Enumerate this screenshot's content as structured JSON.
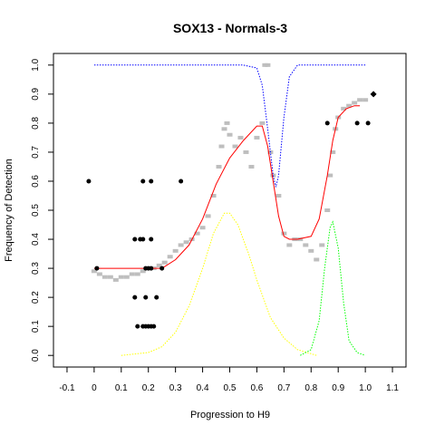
{
  "chart_data": {
    "type": "scatter",
    "title": "SOX13 - Normals-3",
    "xlabel": "Progression to H9",
    "ylabel": "Frequency of Detection",
    "xlim": [
      -0.15,
      1.15
    ],
    "ylim": [
      -0.04,
      1.04
    ],
    "x_ticks": [
      "-0.1",
      "0",
      "0.1",
      "0.2",
      "0.3",
      "0.4",
      "0.5",
      "0.6",
      "0.7",
      "0.8",
      "0.9",
      "1.0",
      "1.1"
    ],
    "y_ticks": [
      "0.0",
      "0.1",
      "0.2",
      "0.3",
      "0.4",
      "0.5",
      "0.6",
      "0.7",
      "0.8",
      "0.9",
      "1.0"
    ],
    "grid": false,
    "legend": "none",
    "colors": {
      "points": "#000000",
      "smoothed": "#bebebe",
      "fit": "#ff0000",
      "blue_dotted": "#0000ff",
      "yellow_dotted": "#ffff00",
      "green_dotted": "#00ff00"
    },
    "points": [
      {
        "x": -0.02,
        "y": 0.6
      },
      {
        "x": 0.01,
        "y": 0.3
      },
      {
        "x": 0.15,
        "y": 0.4
      },
      {
        "x": 0.17,
        "y": 0.4
      },
      {
        "x": 0.18,
        "y": 0.4
      },
      {
        "x": 0.21,
        "y": 0.4
      },
      {
        "x": 0.18,
        "y": 0.6
      },
      {
        "x": 0.21,
        "y": 0.6
      },
      {
        "x": 0.32,
        "y": 0.6
      },
      {
        "x": 0.19,
        "y": 0.3
      },
      {
        "x": 0.2,
        "y": 0.3
      },
      {
        "x": 0.21,
        "y": 0.3
      },
      {
        "x": 0.15,
        "y": 0.2
      },
      {
        "x": 0.19,
        "y": 0.2
      },
      {
        "x": 0.23,
        "y": 0.2
      },
      {
        "x": 0.16,
        "y": 0.1
      },
      {
        "x": 0.18,
        "y": 0.1
      },
      {
        "x": 0.19,
        "y": 0.1
      },
      {
        "x": 0.2,
        "y": 0.1
      },
      {
        "x": 0.21,
        "y": 0.1
      },
      {
        "x": 0.22,
        "y": 0.1
      },
      {
        "x": 0.25,
        "y": 0.3
      },
      {
        "x": 0.86,
        "y": 0.8
      },
      {
        "x": 0.97,
        "y": 0.8
      },
      {
        "x": 1.01,
        "y": 0.8
      },
      {
        "x": 1.03,
        "y": 0.9
      }
    ],
    "smoothed_points": [
      [
        0.0,
        0.29
      ],
      [
        0.02,
        0.28
      ],
      [
        0.04,
        0.27
      ],
      [
        0.06,
        0.27
      ],
      [
        0.08,
        0.26
      ],
      [
        0.1,
        0.27
      ],
      [
        0.12,
        0.27
      ],
      [
        0.14,
        0.28
      ],
      [
        0.16,
        0.28
      ],
      [
        0.18,
        0.29
      ],
      [
        0.2,
        0.3
      ],
      [
        0.22,
        0.3
      ],
      [
        0.24,
        0.31
      ],
      [
        0.26,
        0.32
      ],
      [
        0.28,
        0.34
      ],
      [
        0.3,
        0.36
      ],
      [
        0.32,
        0.38
      ],
      [
        0.34,
        0.39
      ],
      [
        0.36,
        0.4
      ],
      [
        0.38,
        0.42
      ],
      [
        0.4,
        0.44
      ],
      [
        0.42,
        0.48
      ],
      [
        0.44,
        0.55
      ],
      [
        0.46,
        0.65
      ],
      [
        0.47,
        0.72
      ],
      [
        0.48,
        0.78
      ],
      [
        0.49,
        0.8
      ],
      [
        0.5,
        0.76
      ],
      [
        0.52,
        0.72
      ],
      [
        0.54,
        0.75
      ],
      [
        0.56,
        0.7
      ],
      [
        0.58,
        0.65
      ],
      [
        0.6,
        0.75
      ],
      [
        0.62,
        0.8
      ],
      [
        0.63,
        1.0
      ],
      [
        0.64,
        1.0
      ],
      [
        0.65,
        0.7
      ],
      [
        0.66,
        0.62
      ],
      [
        0.68,
        0.55
      ],
      [
        0.7,
        0.42
      ],
      [
        0.72,
        0.38
      ],
      [
        0.74,
        0.4
      ],
      [
        0.76,
        0.4
      ],
      [
        0.78,
        0.38
      ],
      [
        0.8,
        0.36
      ],
      [
        0.82,
        0.33
      ],
      [
        0.84,
        0.38
      ],
      [
        0.86,
        0.5
      ],
      [
        0.87,
        0.62
      ],
      [
        0.88,
        0.7
      ],
      [
        0.89,
        0.78
      ],
      [
        0.9,
        0.82
      ],
      [
        0.92,
        0.85
      ],
      [
        0.94,
        0.86
      ],
      [
        0.96,
        0.87
      ],
      [
        0.98,
        0.88
      ],
      [
        1.0,
        0.88
      ]
    ],
    "fit_curve": [
      [
        0.0,
        0.3
      ],
      [
        0.05,
        0.3
      ],
      [
        0.1,
        0.3
      ],
      [
        0.15,
        0.3
      ],
      [
        0.2,
        0.3
      ],
      [
        0.25,
        0.3
      ],
      [
        0.3,
        0.33
      ],
      [
        0.35,
        0.38
      ],
      [
        0.4,
        0.47
      ],
      [
        0.45,
        0.59
      ],
      [
        0.5,
        0.68
      ],
      [
        0.55,
        0.74
      ],
      [
        0.6,
        0.79
      ],
      [
        0.62,
        0.79
      ],
      [
        0.64,
        0.72
      ],
      [
        0.66,
        0.6
      ],
      [
        0.68,
        0.48
      ],
      [
        0.7,
        0.41
      ],
      [
        0.72,
        0.4
      ],
      [
        0.75,
        0.4
      ],
      [
        0.8,
        0.41
      ],
      [
        0.83,
        0.47
      ],
      [
        0.86,
        0.62
      ],
      [
        0.88,
        0.74
      ],
      [
        0.9,
        0.82
      ],
      [
        0.93,
        0.85
      ],
      [
        0.96,
        0.86
      ],
      [
        0.98,
        0.86
      ]
    ],
    "blue_dotted_curve": [
      [
        0.0,
        1.0
      ],
      [
        0.2,
        1.0
      ],
      [
        0.4,
        1.0
      ],
      [
        0.55,
        1.0
      ],
      [
        0.6,
        0.99
      ],
      [
        0.62,
        0.93
      ],
      [
        0.64,
        0.78
      ],
      [
        0.66,
        0.62
      ],
      [
        0.67,
        0.58
      ],
      [
        0.68,
        0.62
      ],
      [
        0.7,
        0.82
      ],
      [
        0.72,
        0.96
      ],
      [
        0.75,
        1.0
      ],
      [
        0.85,
        1.0
      ],
      [
        1.0,
        1.0
      ]
    ],
    "yellow_dotted_curve": [
      [
        0.1,
        0.0
      ],
      [
        0.2,
        0.01
      ],
      [
        0.25,
        0.03
      ],
      [
        0.3,
        0.08
      ],
      [
        0.35,
        0.17
      ],
      [
        0.4,
        0.3
      ],
      [
        0.44,
        0.42
      ],
      [
        0.48,
        0.49
      ],
      [
        0.5,
        0.49
      ],
      [
        0.53,
        0.45
      ],
      [
        0.57,
        0.35
      ],
      [
        0.6,
        0.26
      ],
      [
        0.65,
        0.13
      ],
      [
        0.7,
        0.06
      ],
      [
        0.75,
        0.02
      ],
      [
        0.82,
        0.0
      ]
    ],
    "green_dotted_curve": [
      [
        0.76,
        0.0
      ],
      [
        0.8,
        0.02
      ],
      [
        0.83,
        0.12
      ],
      [
        0.85,
        0.3
      ],
      [
        0.87,
        0.44
      ],
      [
        0.88,
        0.46
      ],
      [
        0.9,
        0.37
      ],
      [
        0.92,
        0.18
      ],
      [
        0.94,
        0.05
      ],
      [
        0.97,
        0.01
      ],
      [
        1.0,
        0.0
      ]
    ]
  }
}
